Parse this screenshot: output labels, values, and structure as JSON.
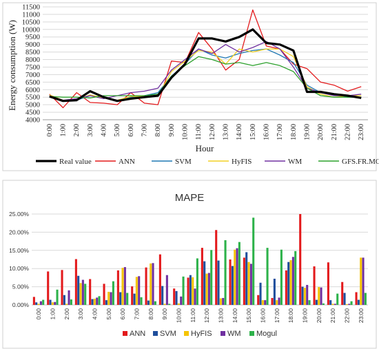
{
  "chart_data": [
    {
      "type": "line",
      "title": "",
      "xlabel": "Hour",
      "ylabel": "Energy consumption (W)",
      "ylim": [
        4000,
        11500
      ],
      "yticks": [
        4000,
        4500,
        5000,
        5500,
        6000,
        6500,
        7000,
        7500,
        8000,
        8500,
        9000,
        9500,
        10000,
        10500,
        11000,
        11500
      ],
      "categories": [
        "0:00",
        "1:00",
        "2:00",
        "3:00",
        "4:00",
        "5:00",
        "6:00",
        "7:00",
        "8:00",
        "9:00",
        "10:00",
        "11:00",
        "12:00",
        "13:00",
        "14:00",
        "15:00",
        "16:00",
        "17:00",
        "18:00",
        "19:00",
        "20:00",
        "21:00",
        "22:00",
        "23:00"
      ],
      "grid": "horizontal",
      "legend_position": "bottom",
      "series": [
        {
          "name": "Real value",
          "color": "#000000",
          "values": [
            5550,
            5250,
            5300,
            5900,
            5500,
            5250,
            5400,
            5500,
            5600,
            6800,
            7700,
            9400,
            9400,
            9200,
            9500,
            10000,
            9100,
            9000,
            8600,
            5850,
            5850,
            5700,
            5600,
            5450
          ]
        },
        {
          "name": "ANN",
          "color": "#e31a1c",
          "values": [
            5700,
            4800,
            5800,
            5150,
            5100,
            5000,
            5800,
            5100,
            5000,
            7900,
            7800,
            9800,
            8700,
            7300,
            8000,
            11300,
            8900,
            8700,
            7700,
            7400,
            6500,
            6300,
            5900,
            6200
          ]
        },
        {
          "name": "SVM",
          "color": "#1f78b4",
          "values": [
            5500,
            5300,
            5300,
            5600,
            5500,
            5300,
            5500,
            5600,
            5800,
            6900,
            7700,
            8700,
            8300,
            8100,
            8400,
            8600,
            8700,
            8300,
            7800,
            6300,
            5800,
            5700,
            5500,
            5500
          ]
        },
        {
          "name": "HyFIS",
          "color": "#f2d024",
          "values": [
            5650,
            5300,
            5350,
            5650,
            5450,
            5300,
            5550,
            5550,
            5550,
            7200,
            7900,
            8600,
            8500,
            7700,
            8700,
            8500,
            8700,
            8700,
            8200,
            6200,
            5700,
            5500,
            5600,
            5600
          ]
        },
        {
          "name": "WM",
          "color": "#7030a0",
          "values": [
            5600,
            5300,
            5400,
            5600,
            5400,
            5600,
            5800,
            5900,
            6100,
            7300,
            8000,
            8700,
            8400,
            9000,
            8500,
            8800,
            9200,
            8700,
            7500,
            6100,
            5800,
            5600,
            5600,
            5700
          ]
        },
        {
          "name": "GFS.FR.MOGUL",
          "color": "#2ca02c",
          "values": [
            5550,
            5500,
            5500,
            5450,
            5600,
            5600,
            5600,
            5600,
            5700,
            6900,
            7600,
            8200,
            8000,
            7700,
            7800,
            7600,
            7800,
            7600,
            7200,
            6100,
            5600,
            5500,
            5500,
            5500
          ]
        }
      ]
    },
    {
      "type": "bar",
      "title": "MAPE",
      "ylim": [
        0,
        25
      ],
      "yticks": [
        "0.00%",
        "5.00%",
        "10.00%",
        "15.00%",
        "20.00%",
        "25.00%"
      ],
      "grid": "horizontal",
      "legend_position": "bottom",
      "categories": [
        "0:00",
        "1:00",
        "2:00",
        "3:00",
        "4:00",
        "5:00",
        "6:00",
        "7:00",
        "8:00",
        "9:00",
        "10:00",
        "11:00",
        "12:00",
        "13:00",
        "14:00",
        "15:00",
        "16:00",
        "17:00",
        "18:00",
        "19:00",
        "20:00",
        "21:00",
        "22:00",
        "23:00"
      ],
      "series": [
        {
          "name": "ANN",
          "color": "#e31a1c",
          "values": [
            2.2,
            9.2,
            9.6,
            12.6,
            7.1,
            5.8,
            9.5,
            5.1,
            10.3,
            13.9,
            4.5,
            7.5,
            15.7,
            20.6,
            12.5,
            13.0,
            2.7,
            1.9,
            9.5,
            25.0,
            10.6,
            11.7,
            6.3,
            3.5
          ]
        },
        {
          "name": "SVM",
          "color": "#1f4e9c",
          "values": [
            0.7,
            1.4,
            2.7,
            8.0,
            1.6,
            1.3,
            3.5,
            3.1,
            1.2,
            5.2,
            3.8,
            8.2,
            12.0,
            12.2,
            10.7,
            14.5,
            6.1,
            7.2,
            11.8,
            5.0,
            1.4,
            1.3,
            3.3,
            1.4
          ]
        },
        {
          "name": "HyFIS",
          "color": "#f5c400",
          "values": [
            0.3,
            0.7,
            0.3,
            6.0,
            1.7,
            3.6,
            10.2,
            7.7,
            11.4,
            0.3,
            0.4,
            7.6,
            8.6,
            1.8,
            15.2,
            11.8,
            1.3,
            1.3,
            12.3,
            4.7,
            4.9,
            0.3,
            0.2,
            13.0
          ]
        },
        {
          "name": "WM",
          "color": "#7030a0",
          "values": [
            1.0,
            0.8,
            4.0,
            6.9,
            2.0,
            3.5,
            10.4,
            7.9,
            11.5,
            8.2,
            2.3,
            4.5,
            8.8,
            1.9,
            15.6,
            11.3,
            1.3,
            2.0,
            13.2,
            5.5,
            4.8,
            0.3,
            0.3,
            13.0
          ]
        },
        {
          "name": "Mogul",
          "color": "#2db24a",
          "values": [
            1.4,
            4.2,
            1.5,
            5.8,
            2.4,
            6.5,
            3.3,
            2.1,
            1.0,
            0.3,
            7.8,
            12.8,
            15.1,
            17.8,
            17.3,
            24.0,
            15.7,
            15.2,
            14.8,
            1.3,
            0.4,
            3.1,
            1.0,
            3.3
          ]
        }
      ]
    }
  ]
}
